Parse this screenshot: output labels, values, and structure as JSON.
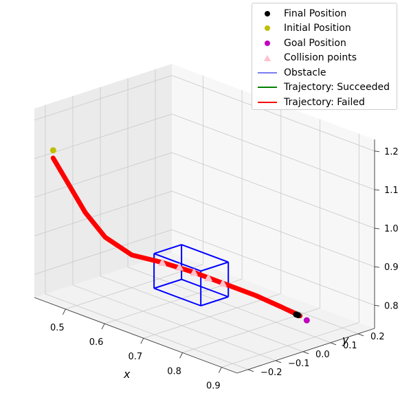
{
  "chart_data": {
    "type": "scatter",
    "projection": "3d",
    "title": "",
    "xlabel": "x",
    "ylabel": "y",
    "zlabel": "",
    "x_ticks": [
      "0.5",
      "0.6",
      "0.7",
      "0.8",
      "0.9"
    ],
    "y_ticks": [
      "−0.2",
      "−0.1",
      "0.0",
      "0.1",
      "0.2"
    ],
    "z_ticks": [
      "0.8",
      "0.9",
      "1.0",
      "1.1",
      "1.2"
    ],
    "grid": true,
    "legend_position": "top-right",
    "legend": [
      {
        "label": "Final Position",
        "marker": "dot",
        "color": "#000000"
      },
      {
        "label": "Initial Position",
        "marker": "dot",
        "color": "#bfbf00"
      },
      {
        "label": "Goal Position",
        "marker": "dot",
        "color": "#bf00bf"
      },
      {
        "label": "Collision points",
        "marker": "triangle",
        "color": "#ffc0cb"
      },
      {
        "label": "Obstacle",
        "marker": "line",
        "color": "#7b7bf2"
      },
      {
        "label": "Trajectory: Succeeded",
        "marker": "line",
        "color": "#008000"
      },
      {
        "label": "Trajectory: Failed",
        "marker": "line",
        "color": "#ff0000"
      }
    ],
    "series": [
      {
        "name": "Trajectory: Failed",
        "color": "#ff0000",
        "points": [
          [
            0.44,
            -0.2,
            1.1
          ],
          [
            0.46,
            -0.17,
            1.03
          ],
          [
            0.48,
            -0.14,
            0.96
          ],
          [
            0.51,
            -0.11,
            0.9
          ],
          [
            0.55,
            -0.07,
            0.86
          ],
          [
            0.6,
            -0.03,
            0.85
          ],
          [
            0.66,
            0.0,
            0.84
          ],
          [
            0.72,
            0.02,
            0.83
          ],
          [
            0.79,
            0.04,
            0.82
          ],
          [
            0.85,
            0.05,
            0.81
          ],
          [
            0.89,
            0.06,
            0.8
          ]
        ]
      },
      {
        "name": "Collision points",
        "color": "#ffc0cb",
        "points": [
          [
            0.6,
            -0.03,
            0.85
          ],
          [
            0.63,
            -0.01,
            0.845
          ],
          [
            0.66,
            0.0,
            0.84
          ],
          [
            0.69,
            0.01,
            0.835
          ],
          [
            0.72,
            0.02,
            0.83
          ]
        ]
      },
      {
        "name": "Initial Position",
        "color": "#bfbf00",
        "points": [
          [
            0.44,
            -0.2,
            1.12
          ]
        ]
      },
      {
        "name": "Goal Position",
        "color": "#bf00bf",
        "points": [
          [
            0.9,
            0.07,
            0.79
          ]
        ]
      },
      {
        "name": "Final Position",
        "color": "#000000",
        "points": [
          [
            0.88,
            0.06,
            0.8
          ],
          [
            0.885,
            0.06,
            0.8
          ]
        ]
      }
    ],
    "obstacle": {
      "name": "Obstacle",
      "color": "#0000ff",
      "box": {
        "x": [
          0.6,
          0.72
        ],
        "y": [
          -0.06,
          0.04
        ],
        "z": [
          0.79,
          0.88
        ]
      }
    }
  }
}
